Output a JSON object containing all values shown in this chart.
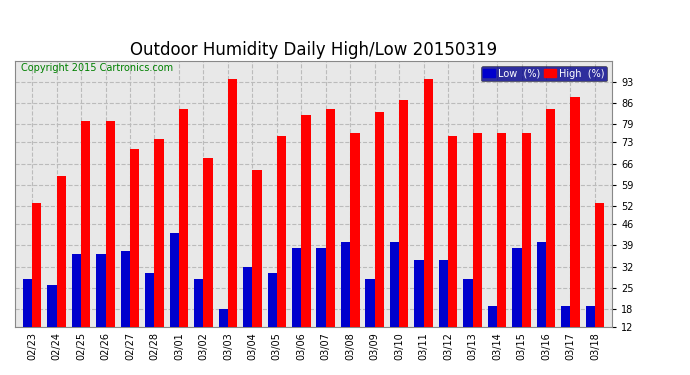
{
  "title": "Outdoor Humidity Daily High/Low 20150319",
  "copyright": "Copyright 2015 Cartronics.com",
  "dates": [
    "02/23",
    "02/24",
    "02/25",
    "02/26",
    "02/27",
    "02/28",
    "03/01",
    "03/02",
    "03/03",
    "03/04",
    "03/05",
    "03/06",
    "03/07",
    "03/08",
    "03/09",
    "03/10",
    "03/11",
    "03/12",
    "03/13",
    "03/14",
    "03/15",
    "03/16",
    "03/17",
    "03/18"
  ],
  "high": [
    53,
    62,
    80,
    80,
    71,
    74,
    84,
    68,
    94,
    64,
    75,
    82,
    84,
    76,
    83,
    87,
    94,
    75,
    76,
    76,
    76,
    84,
    88,
    53
  ],
  "low": [
    28,
    26,
    36,
    36,
    37,
    30,
    43,
    28,
    18,
    32,
    30,
    38,
    38,
    40,
    28,
    40,
    34,
    34,
    28,
    19,
    38,
    40,
    19,
    19
  ],
  "high_color": "#ff0000",
  "low_color": "#0000cd",
  "bg_color": "#ffffff",
  "plot_bg_color": "#e8e8e8",
  "grid_color": "#bbbbbb",
  "ylim_min": 12,
  "ylim_max": 100,
  "yticks": [
    12,
    18,
    25,
    32,
    39,
    46,
    52,
    59,
    66,
    73,
    79,
    86,
    93
  ],
  "bar_width": 0.38,
  "title_fontsize": 12,
  "tick_fontsize": 7,
  "copyright_fontsize": 7,
  "legend_fontsize": 7
}
